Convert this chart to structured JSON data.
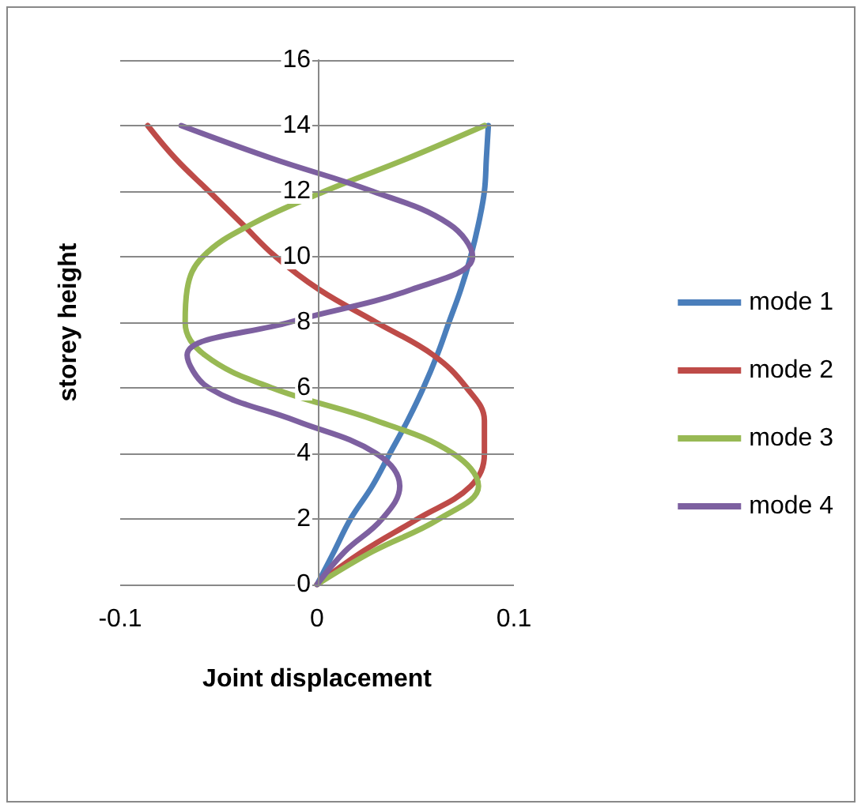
{
  "chart_data": {
    "type": "line",
    "xlabel": "Joint displacement",
    "ylabel": "storey height",
    "xlim": [
      -0.1,
      0.1
    ],
    "xticks": [
      -0.1,
      0,
      0.1
    ],
    "ylim": [
      0,
      16
    ],
    "yticks": [
      0,
      2,
      4,
      6,
      8,
      10,
      12,
      14,
      16
    ],
    "grid": "y",
    "legend": "right",
    "marker": "none",
    "line_style": "solid",
    "series": [
      {
        "name": "mode 1",
        "color": "#4a7ebb",
        "x": [
          0,
          0.0086,
          0.017,
          0.028,
          0.037,
          0.046,
          0.054,
          0.061,
          0.067,
          0.073,
          0.078,
          0.082,
          0.085,
          0.086,
          0.087
        ],
        "values": [
          0,
          1,
          2,
          3,
          4,
          5,
          6,
          7,
          8,
          9,
          10,
          11,
          12,
          13,
          14
        ]
      },
      {
        "name": "mode 2",
        "color": "#be4b48",
        "x": [
          0,
          0.023,
          0.051,
          0.078,
          0.085,
          0.085,
          0.076,
          0.059,
          0.03,
          0.001,
          -0.021,
          -0.038,
          -0.055,
          -0.072,
          -0.086
        ],
        "values": [
          0,
          1,
          2,
          3,
          4,
          5,
          6,
          7,
          8,
          9,
          10,
          11,
          12,
          13,
          14
        ]
      },
      {
        "name": "mode 3",
        "color": "#98b954",
        "x": [
          0,
          0.028,
          0.062,
          0.082,
          0.069,
          0.03,
          -0.023,
          -0.057,
          -0.067,
          -0.066,
          -0.058,
          -0.033,
          0.004,
          0.046,
          0.085
        ],
        "values": [
          0,
          1,
          2,
          3,
          4,
          5,
          6,
          7,
          8,
          9,
          10,
          11,
          12,
          13,
          14
        ]
      },
      {
        "name": "mode 4",
        "color": "#7d60a0",
        "x": [
          0,
          0.014,
          0.033,
          0.042,
          0.03,
          -0.011,
          -0.055,
          -0.066,
          -0.014,
          0.048,
          0.079,
          0.067,
          0.028,
          -0.023,
          -0.069
        ],
        "values": [
          0,
          1,
          2,
          3,
          4,
          5,
          6,
          7,
          8,
          9,
          10,
          11,
          12,
          13,
          14
        ]
      }
    ]
  }
}
